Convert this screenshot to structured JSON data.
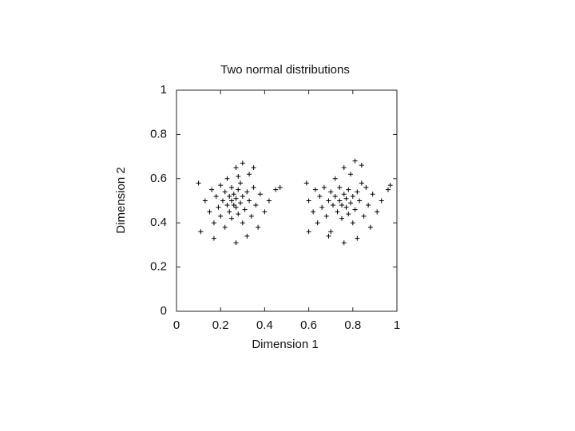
{
  "chart_data": {
    "type": "scatter",
    "title": "Two normal distributions",
    "x_label": "Dimension 1",
    "y_label": "Dimension 2",
    "marker": "+",
    "color": "#000000",
    "x": [
      0.1,
      0.11,
      0.13,
      0.15,
      0.16,
      0.17,
      0.18,
      0.19,
      0.2,
      0.2,
      0.21,
      0.22,
      0.22,
      0.23,
      0.23,
      0.24,
      0.24,
      0.25,
      0.25,
      0.25,
      0.26,
      0.26,
      0.27,
      0.27,
      0.27,
      0.28,
      0.28,
      0.29,
      0.29,
      0.3,
      0.3,
      0.3,
      0.31,
      0.32,
      0.32,
      0.33,
      0.33,
      0.34,
      0.35,
      0.36,
      0.37,
      0.38,
      0.4,
      0.42,
      0.45,
      0.47,
      0.27,
      0.17,
      0.35,
      0.28,
      0.59,
      0.6,
      0.62,
      0.63,
      0.64,
      0.65,
      0.66,
      0.67,
      0.68,
      0.69,
      0.7,
      0.7,
      0.71,
      0.72,
      0.72,
      0.73,
      0.74,
      0.74,
      0.75,
      0.75,
      0.76,
      0.76,
      0.77,
      0.77,
      0.78,
      0.78,
      0.79,
      0.79,
      0.8,
      0.8,
      0.81,
      0.81,
      0.82,
      0.82,
      0.83,
      0.84,
      0.85,
      0.86,
      0.87,
      0.88,
      0.89,
      0.91,
      0.93,
      0.96,
      0.97,
      0.69,
      0.76,
      0.84,
      0.6
    ],
    "y": [
      0.58,
      0.36,
      0.5,
      0.45,
      0.55,
      0.4,
      0.52,
      0.47,
      0.57,
      0.43,
      0.5,
      0.54,
      0.38,
      0.48,
      0.6,
      0.52,
      0.45,
      0.5,
      0.56,
      0.42,
      0.48,
      0.53,
      0.65,
      0.47,
      0.51,
      0.55,
      0.44,
      0.49,
      0.58,
      0.52,
      0.4,
      0.67,
      0.46,
      0.54,
      0.34,
      0.5,
      0.62,
      0.43,
      0.56,
      0.48,
      0.38,
      0.53,
      0.45,
      0.5,
      0.55,
      0.56,
      0.31,
      0.33,
      0.65,
      0.61,
      0.58,
      0.5,
      0.45,
      0.55,
      0.4,
      0.52,
      0.47,
      0.56,
      0.43,
      0.5,
      0.54,
      0.36,
      0.48,
      0.6,
      0.52,
      0.45,
      0.5,
      0.56,
      0.42,
      0.48,
      0.53,
      0.65,
      0.47,
      0.51,
      0.55,
      0.44,
      0.49,
      0.62,
      0.52,
      0.4,
      0.68,
      0.46,
      0.54,
      0.33,
      0.5,
      0.58,
      0.43,
      0.56,
      0.48,
      0.38,
      0.53,
      0.45,
      0.5,
      0.55,
      0.57,
      0.34,
      0.31,
      0.66,
      0.36
    ],
    "xlim": [
      0,
      1
    ],
    "ylim": [
      0,
      1
    ],
    "xticks": [
      0,
      0.2,
      0.4,
      0.6,
      0.8,
      1
    ],
    "yticks": [
      0,
      0.2,
      0.4,
      0.6,
      0.8,
      1
    ]
  }
}
